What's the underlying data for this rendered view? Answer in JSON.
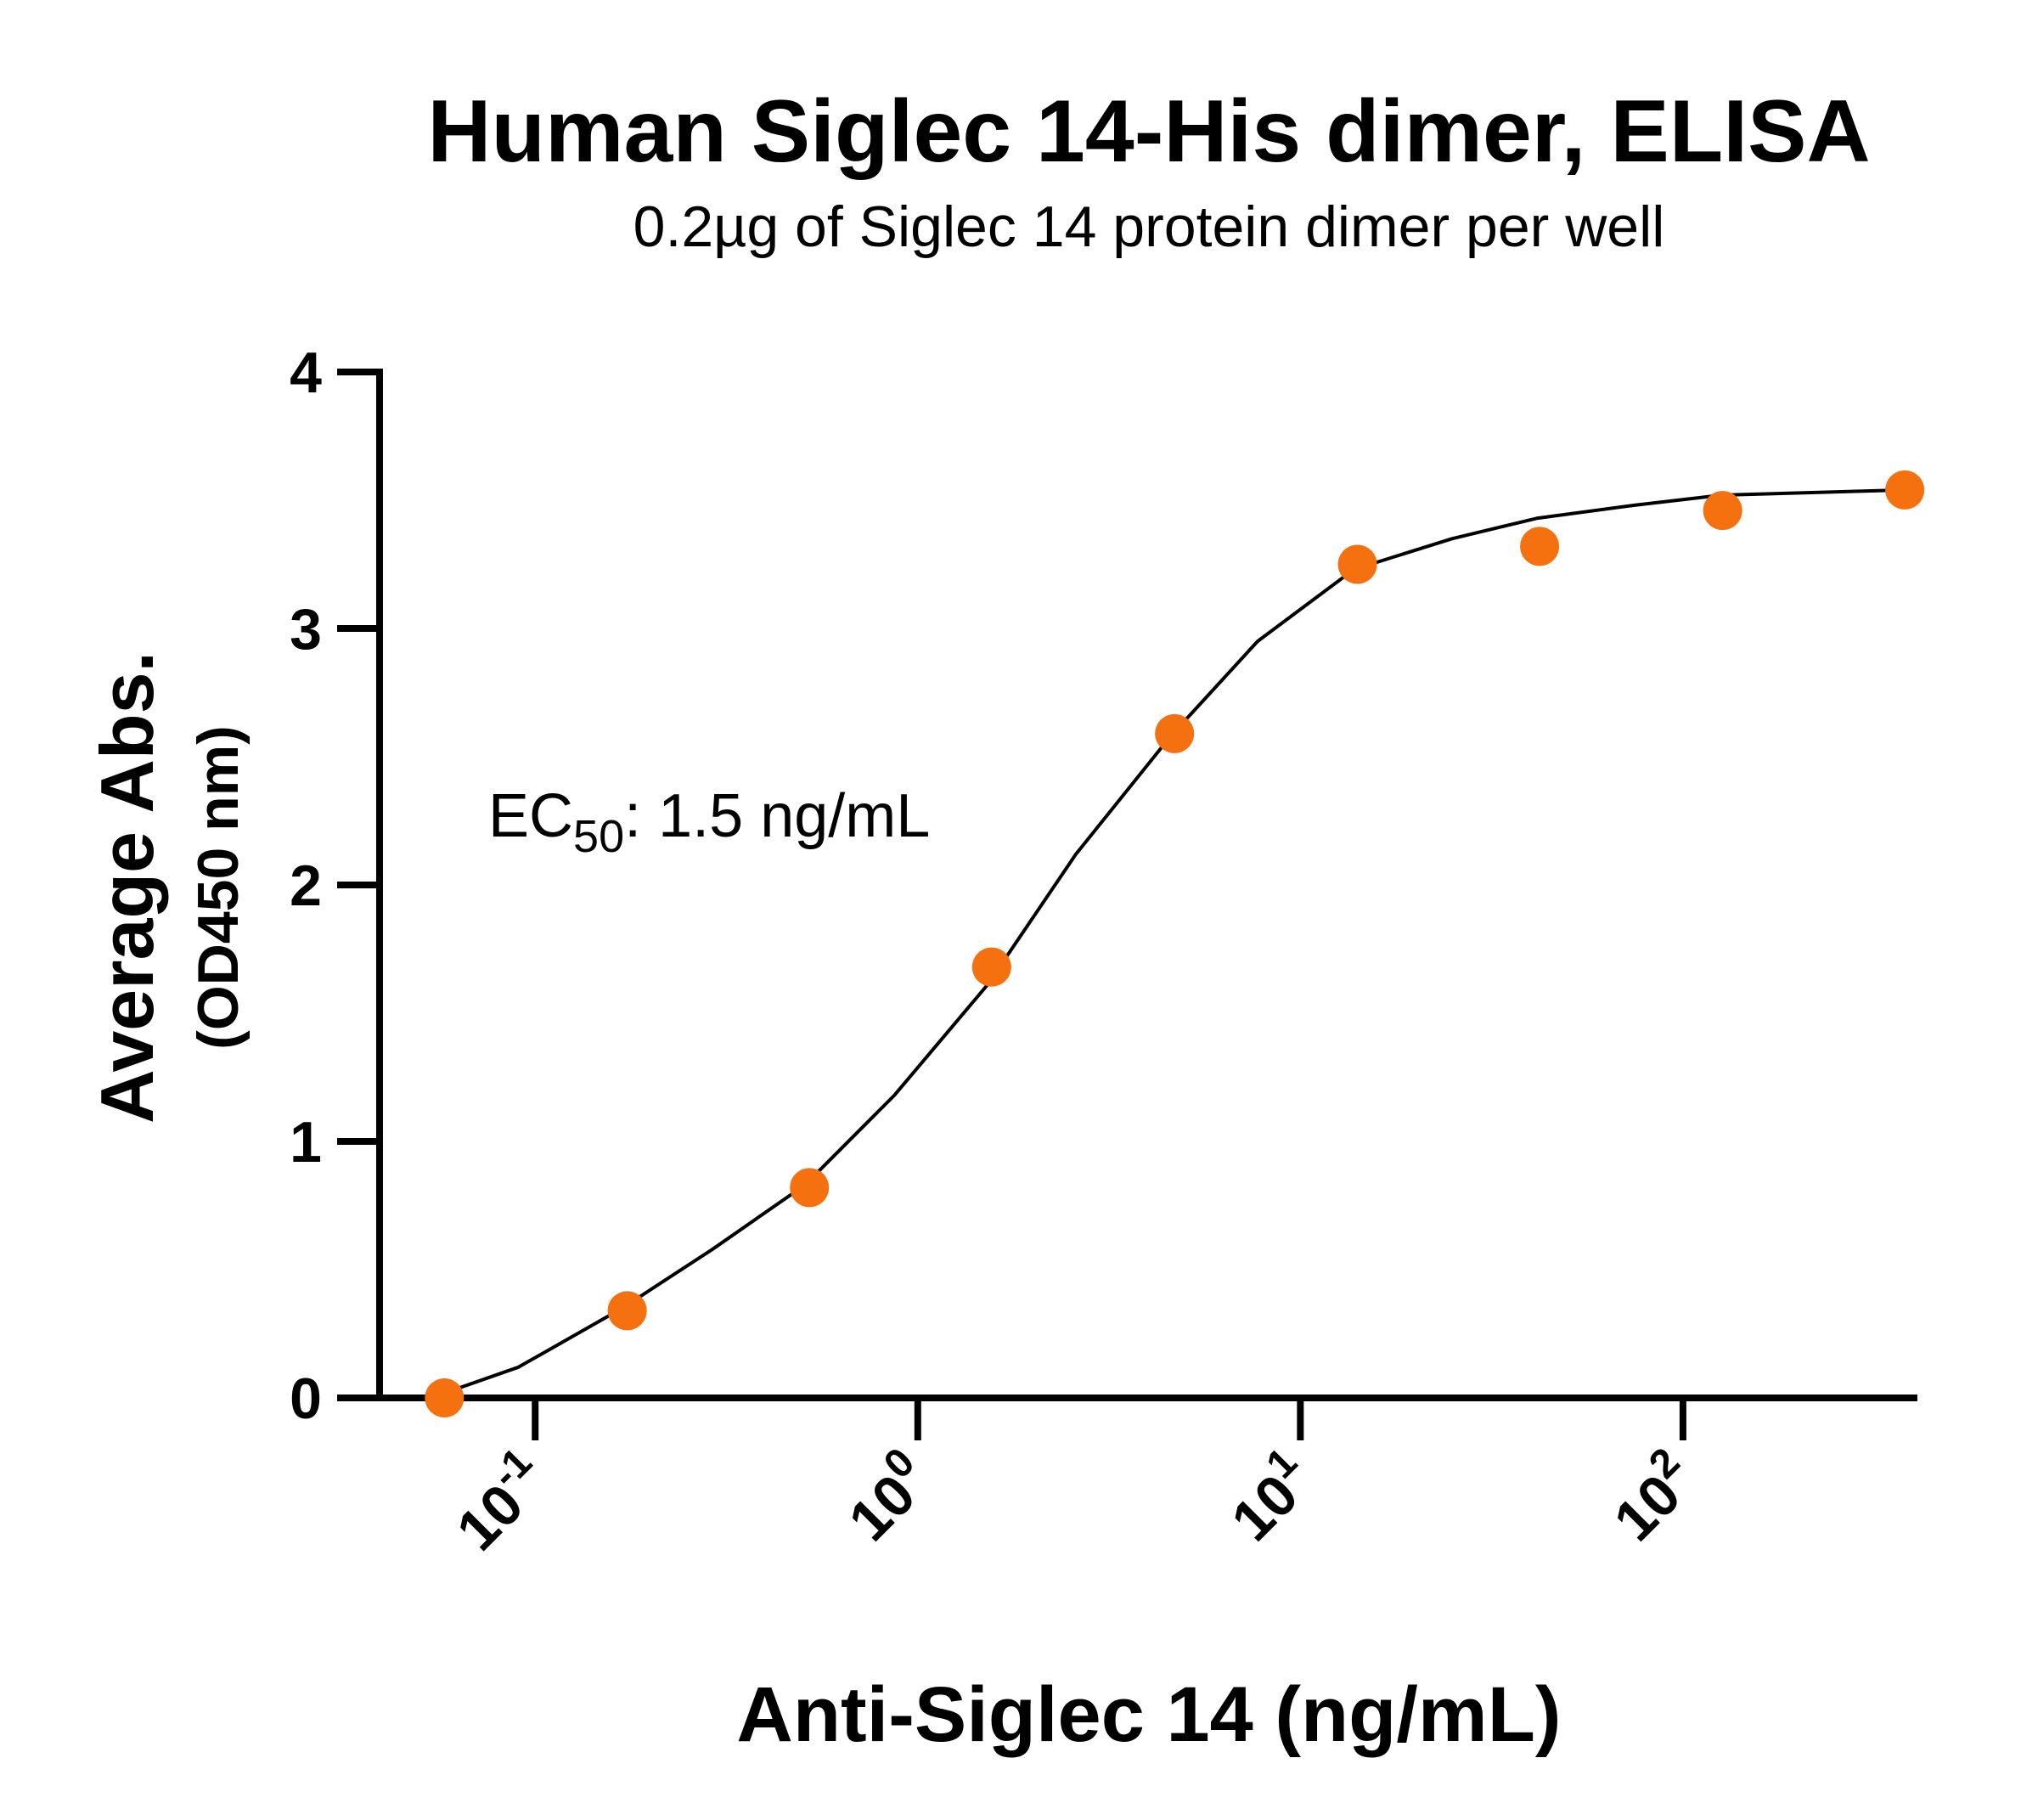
{
  "chart_data": {
    "type": "scatter",
    "title": "Human Siglec 14-His dimer, ELISA",
    "subtitle": "0.2µg of Siglec 14 protein dimer per well",
    "x_label": "Anti-Siglec 14 (ng/mL)",
    "y_label": [
      "Average Abs.",
      "(OD450 nm)"
    ],
    "annotation": {
      "text": "EC",
      "subscript": "50",
      "rest": ": 1.5 ng/mL"
    },
    "x_scale": "log",
    "xlim": [
      0.0392,
      410
    ],
    "xticks": [
      {
        "value": 0.1,
        "label": "10",
        "exponent": "-1"
      },
      {
        "value": 1,
        "label": "10",
        "exponent": "0"
      },
      {
        "value": 10,
        "label": "10",
        "exponent": "1"
      },
      {
        "value": 100,
        "label": "10",
        "exponent": "2"
      }
    ],
    "ylim": [
      0,
      4
    ],
    "yticks": [
      0,
      1,
      2,
      3,
      4
    ],
    "series": [
      {
        "color": "#f5700f",
        "x": [
          0.0579,
          0.174,
          0.521,
          1.56,
          4.69,
          14.1,
          42.2,
          127,
          380
        ],
        "values": [
          0.0,
          0.34,
          0.82,
          1.68,
          2.59,
          3.25,
          3.32,
          3.46,
          3.54
        ]
      }
    ],
    "fit": {
      "color": "#000000",
      "x": [
        0.0557,
        0.0904,
        0.169,
        0.291,
        0.507,
        0.869,
        1.52,
        2.59,
        4.58,
        7.73,
        13.8,
        24.9,
        41.7,
        74.3,
        126,
        380
      ],
      "values": [
        0.01,
        0.12,
        0.35,
        0.58,
        0.83,
        1.18,
        1.61,
        2.12,
        2.58,
        2.95,
        3.23,
        3.35,
        3.43,
        3.48,
        3.52,
        3.54
      ]
    }
  }
}
